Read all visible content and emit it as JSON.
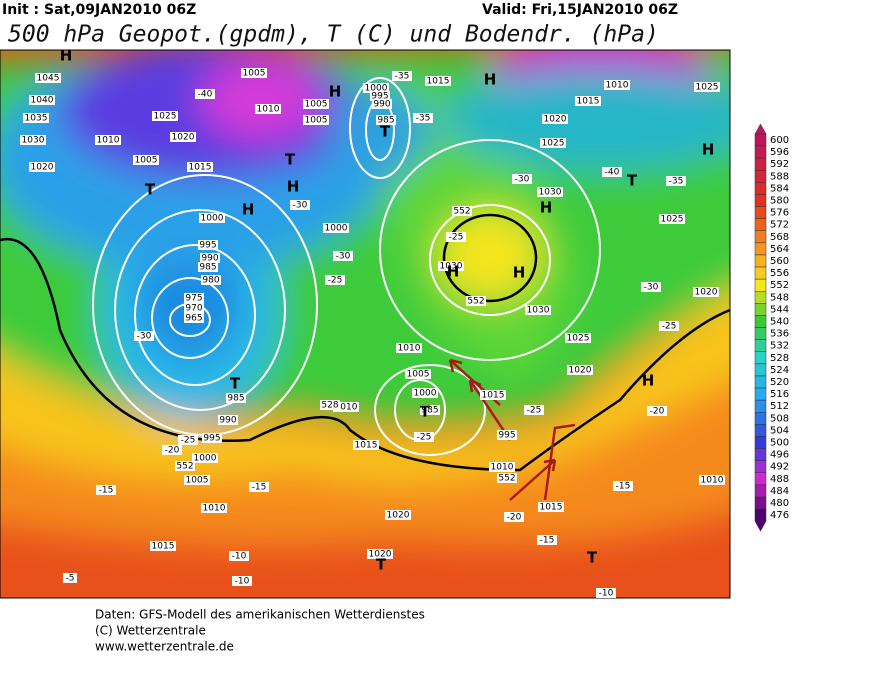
{
  "header": {
    "init": "Init : Sat,09JAN2010 06Z",
    "valid": "Valid: Fri,15JAN2010 06Z",
    "title": "500 hPa Geopot.(gpdm), T (C) und Bodendr. (hPa)"
  },
  "map": {
    "labels": [
      "1045",
      "1040",
      "1035",
      "1030",
      "1020",
      "1010",
      "1005",
      "1015",
      "1025",
      "1020",
      "1005",
      "1010",
      "1005",
      "1005",
      "1000",
      "995",
      "990",
      "985",
      "1015",
      "1020",
      "1025",
      "1015",
      "1010",
      "1025",
      "1030",
      "1025",
      "1000",
      "995",
      "990",
      "985",
      "980",
      "975",
      "970",
      "965",
      "985",
      "990",
      "995",
      "1000",
      "1005",
      "1010",
      "1015",
      "1000",
      "1010",
      "1005",
      "1000",
      "985",
      "1015",
      "1020",
      "1025",
      "1030",
      "1030",
      "1010",
      "1015",
      "995",
      "1010",
      "1015",
      "1020",
      "1020",
      "1020",
      "1010",
      "552",
      "552",
      "552",
      "552",
      "528",
      "-40",
      "-35",
      "-35",
      "-30",
      "-30",
      "-25",
      "-30",
      "-25",
      "-20",
      "-15",
      "-15",
      "-10",
      "-10",
      "-5",
      "-25",
      "-30",
      "-40",
      "-35",
      "-30",
      "-25",
      "-25",
      "-20",
      "-15",
      "-15",
      "-10",
      "-20",
      "-25",
      "H",
      "H",
      "H",
      "H",
      "H",
      "H",
      "H",
      "H",
      "H",
      "H",
      "T",
      "T",
      "T",
      "T",
      "T",
      "T",
      "T",
      "T"
    ]
  },
  "colorbar": {
    "ticks": [
      600,
      596,
      592,
      588,
      584,
      580,
      576,
      572,
      568,
      564,
      560,
      556,
      552,
      548,
      544,
      540,
      536,
      532,
      528,
      524,
      520,
      516,
      512,
      508,
      504,
      500,
      496,
      492,
      488,
      484,
      480,
      476
    ]
  },
  "footer": {
    "lines": [
      "Daten: GFS-Modell des amerikanischen Wetterdienstes",
      "(C) Wetterzentrale",
      "www.wetterzentrale.de"
    ]
  }
}
